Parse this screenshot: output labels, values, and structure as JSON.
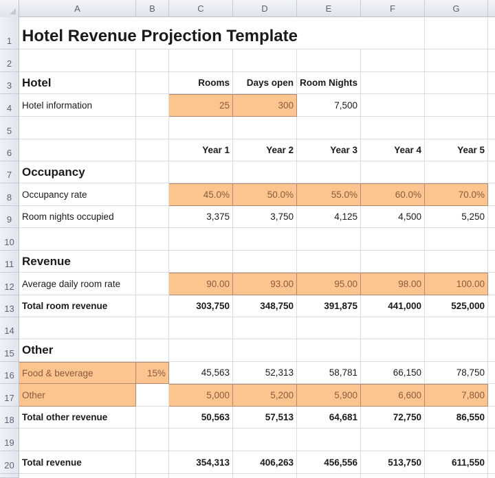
{
  "spreadsheet": {
    "columns": [
      "A",
      "B",
      "C",
      "D",
      "E",
      "F",
      "G"
    ],
    "rows": [
      "1",
      "2",
      "3",
      "4",
      "5",
      "6",
      "7",
      "8",
      "9",
      "10",
      "11",
      "12",
      "13",
      "14",
      "15",
      "16",
      "17",
      "18",
      "19",
      "20"
    ]
  },
  "sheet": {
    "title": "Hotel Revenue Projection Template",
    "hotel": {
      "section_label": "Hotel",
      "headers": {
        "rooms": "Rooms",
        "days_open": "Days open",
        "room_nights": "Room Nights"
      },
      "info_label": "Hotel information",
      "rooms": "25",
      "days_open": "300",
      "room_nights": "7,500"
    },
    "years": [
      "Year 1",
      "Year 2",
      "Year 3",
      "Year 4",
      "Year 5"
    ],
    "occupancy": {
      "section_label": "Occupancy",
      "rate_label": "Occupancy rate",
      "rate": [
        "45.0%",
        "50.0%",
        "55.0%",
        "60.0%",
        "70.0%"
      ],
      "nights_label": "Room nights occupied",
      "nights": [
        "3,375",
        "3,750",
        "4,125",
        "4,500",
        "5,250"
      ]
    },
    "revenue": {
      "section_label": "Revenue",
      "adr_label": "Average daily room rate",
      "adr": [
        "90.00",
        "93.00",
        "95.00",
        "98.00",
        "100.00"
      ],
      "total_label": "Total room revenue",
      "total": [
        "303,750",
        "348,750",
        "391,875",
        "441,000",
        "525,000"
      ]
    },
    "other": {
      "section_label": "Other",
      "fb_label": "Food & beverage",
      "fb_pct": "15%",
      "fb": [
        "45,563",
        "52,313",
        "58,781",
        "66,150",
        "78,750"
      ],
      "other_label": "Other",
      "other": [
        "5,000",
        "5,200",
        "5,900",
        "6,600",
        "7,800"
      ],
      "total_label": "Total other revenue",
      "total": [
        "50,563",
        "57,513",
        "64,681",
        "72,750",
        "86,550"
      ]
    },
    "total_revenue": {
      "label": "Total revenue",
      "values": [
        "354,313",
        "406,263",
        "456,556",
        "513,750",
        "611,550"
      ]
    }
  },
  "colors": {
    "input_fill": "#fcc58f",
    "input_text": "#8a5a3c",
    "header_bg": "#e3e7ee"
  }
}
